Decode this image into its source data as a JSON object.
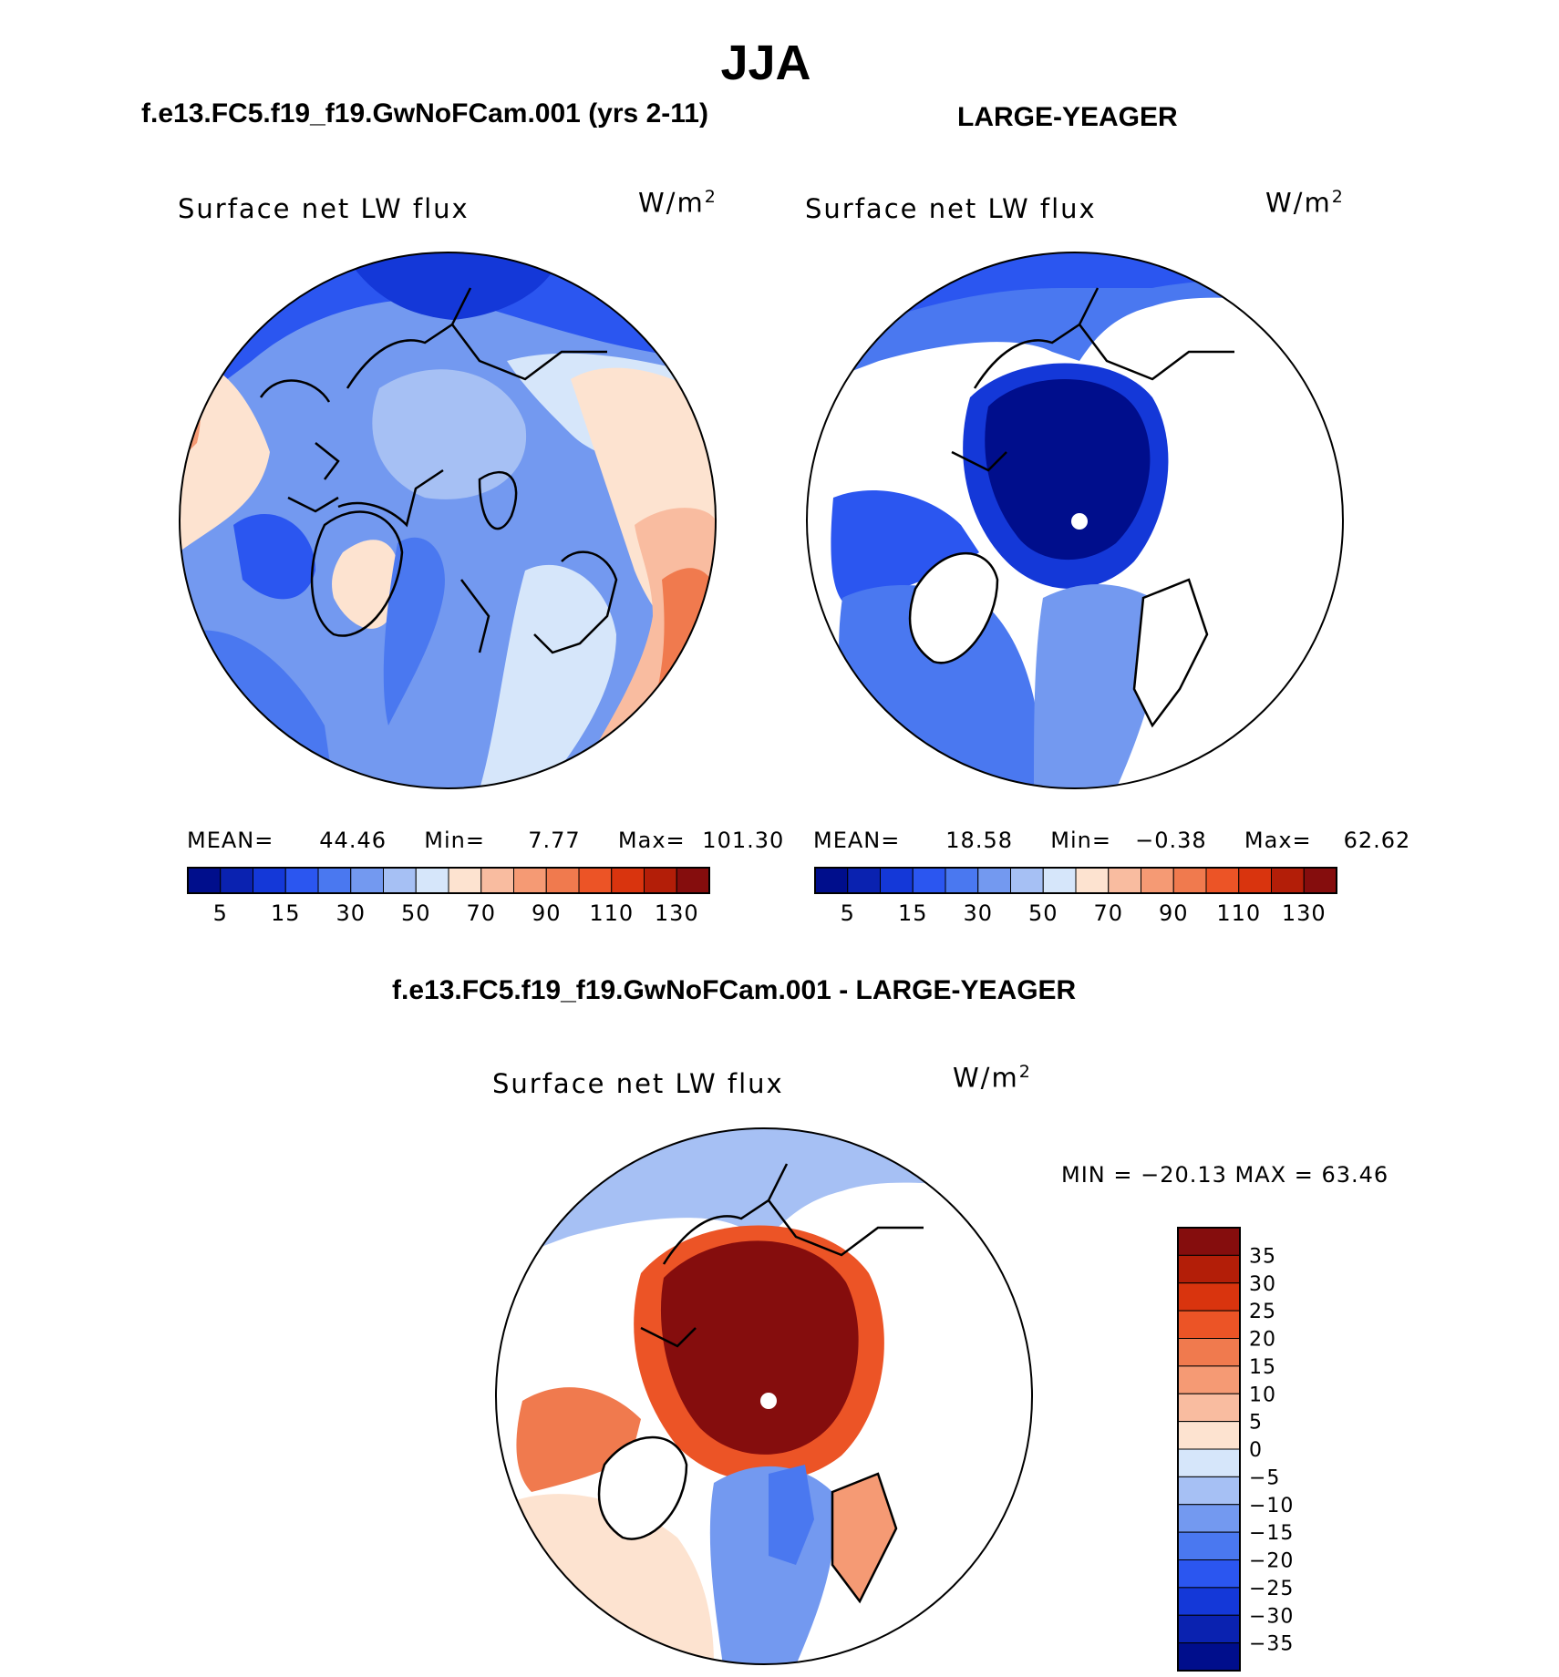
{
  "figure": {
    "season": "JJA",
    "left_case_title": "f.e13.FC5.f19_f19.GwNoFCam.001 (yrs 2-11)",
    "right_case_title": "LARGE-YEAGER",
    "diff_case_title": "f.e13.FC5.f19_f19.GwNoFCam.001 - LARGE-YEAGER"
  },
  "panels": {
    "left": {
      "variable": "Surface net LW flux",
      "units_base": "W/m",
      "units_exp": "2",
      "mean_label": "MEAN=",
      "mean": "44.46",
      "min_label": "Min=",
      "min": "7.77",
      "max_label": "Max=",
      "max": "101.30"
    },
    "right": {
      "variable": "Surface net LW flux",
      "units_base": "W/m",
      "units_exp": "2",
      "mean_label": "MEAN=",
      "mean": "18.58",
      "min_label": "Min=",
      "min": "−0.38",
      "max_label": "Max=",
      "max": "62.62"
    },
    "diff": {
      "variable": "Surface net LW flux",
      "units_base": "W/m",
      "units_exp": "2",
      "minmax_text": "MIN = −20.13 MAX =   63.46"
    }
  },
  "chart_data": [
    {
      "type": "heatmap",
      "projection": "north-polar-stereographic",
      "title": "Surface net LW flux",
      "units": "W/m²",
      "stats": {
        "mean": 44.46,
        "min": 7.77,
        "max": 101.3
      },
      "colorbar": {
        "orientation": "horizontal",
        "levels": [
          5,
          10,
          15,
          20,
          30,
          40,
          50,
          60,
          70,
          80,
          90,
          100,
          110,
          120,
          130
        ],
        "tick_labels": [
          "5",
          "15",
          "30",
          "50",
          "70",
          "90",
          "110",
          "130"
        ],
        "colors": [
          "#000e8c",
          "#0a22b0",
          "#1438d8",
          "#2b56f0",
          "#4a78f0",
          "#7399f0",
          "#a6c0f4",
          "#d6e6fa",
          "#fde3d0",
          "#f9bca0",
          "#f59a74",
          "#f07a4e",
          "#ec5426",
          "#d9340e",
          "#b31e08",
          "#850d0d"
        ]
      }
    },
    {
      "type": "heatmap",
      "projection": "north-polar-stereographic",
      "title": "Surface net LW flux",
      "units": "W/m²",
      "stats": {
        "mean": 18.58,
        "min": -0.38,
        "max": 62.62
      },
      "colorbar": {
        "orientation": "horizontal",
        "levels": [
          5,
          10,
          15,
          20,
          30,
          40,
          50,
          60,
          70,
          80,
          90,
          100,
          110,
          120,
          130
        ],
        "tick_labels": [
          "5",
          "15",
          "30",
          "50",
          "70",
          "90",
          "110",
          "130"
        ],
        "colors": [
          "#000e8c",
          "#0a22b0",
          "#1438d8",
          "#2b56f0",
          "#4a78f0",
          "#7399f0",
          "#a6c0f4",
          "#d6e6fa",
          "#fde3d0",
          "#f9bca0",
          "#f59a74",
          "#f07a4e",
          "#ec5426",
          "#d9340e",
          "#b31e08",
          "#850d0d"
        ]
      }
    },
    {
      "type": "heatmap",
      "projection": "north-polar-stereographic",
      "title": "Surface net LW flux",
      "units": "W/m²",
      "stats": {
        "min": -20.13,
        "max": 63.46
      },
      "colorbar": {
        "orientation": "vertical",
        "levels": [
          35,
          30,
          25,
          20,
          15,
          10,
          5,
          0,
          -5,
          -10,
          -15,
          -20,
          -25,
          -30,
          -35
        ],
        "tick_labels": [
          "35",
          "30",
          "25",
          "20",
          "15",
          "10",
          "5",
          "0",
          "−5",
          "−10",
          "−15",
          "−20",
          "−25",
          "−30",
          "−35"
        ],
        "colors": [
          "#850d0d",
          "#b31e08",
          "#d9340e",
          "#ec5426",
          "#f07a4e",
          "#f59a74",
          "#f9bca0",
          "#fde3d0",
          "#d6e6fa",
          "#a6c0f4",
          "#7399f0",
          "#4a78f0",
          "#2b56f0",
          "#1438d8",
          "#0a22b0",
          "#000e8c"
        ]
      }
    }
  ]
}
